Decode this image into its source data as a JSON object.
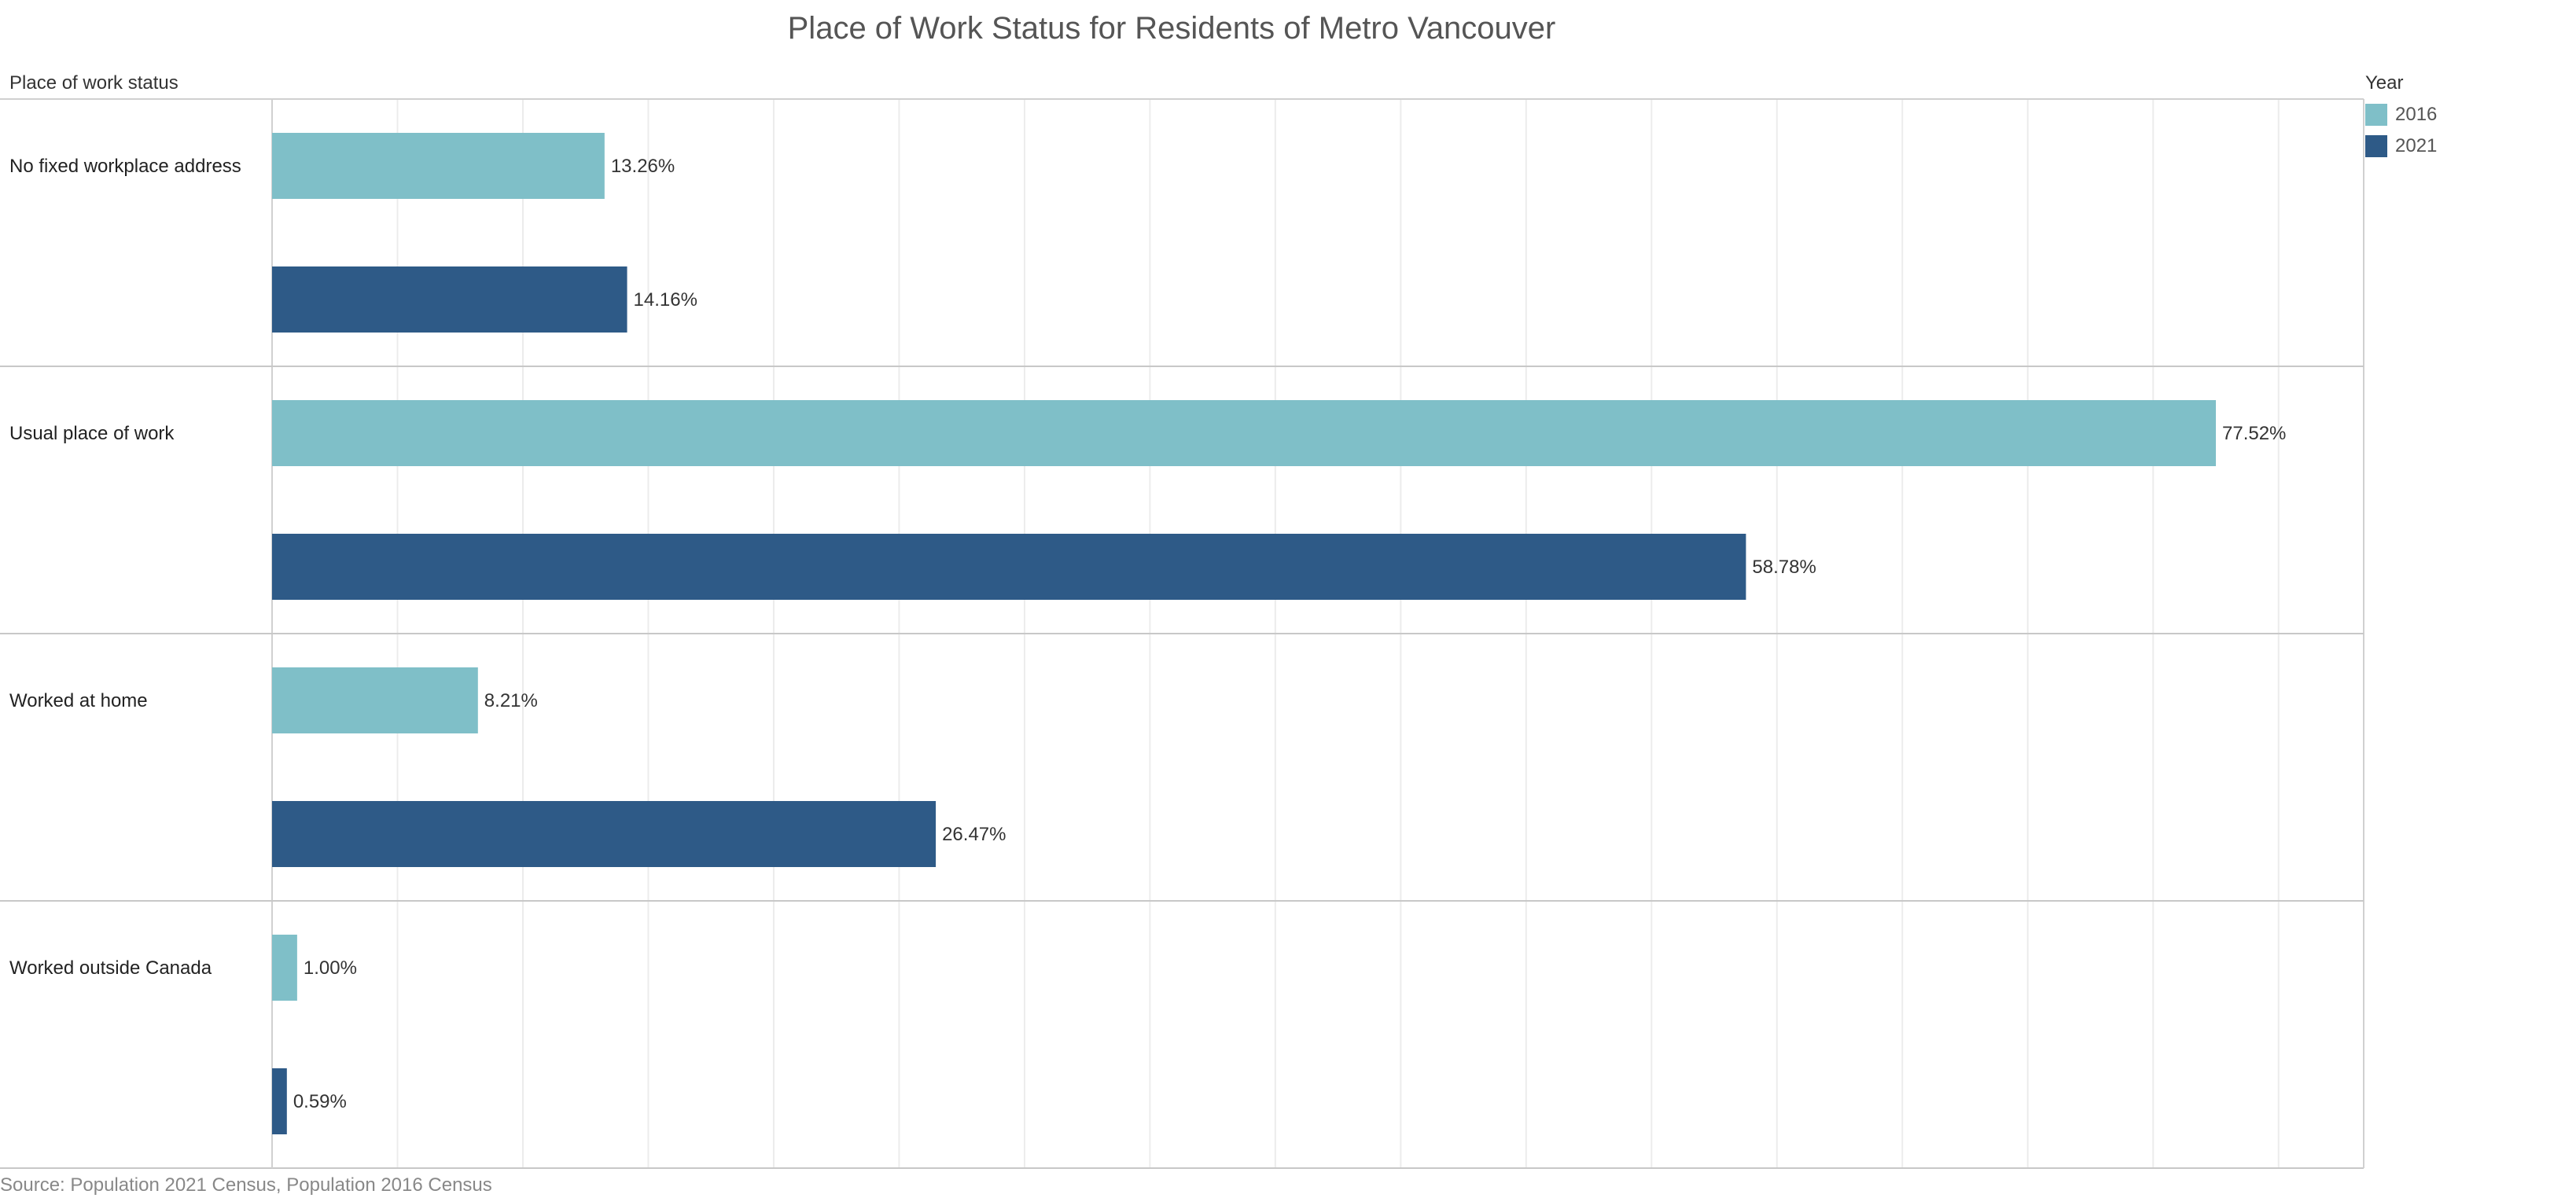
{
  "chart_data": {
    "type": "bar",
    "orientation": "horizontal",
    "title": "Place of Work Status for Residents of Metro Vancouver",
    "row_header": "Place of work status",
    "categories": [
      "No fixed workplace address",
      "Usual place of work",
      "Worked at home",
      "Worked outside Canada"
    ],
    "series": [
      {
        "name": "2016",
        "color": "#7fbfc8",
        "values": [
          13.26,
          77.52,
          8.21,
          1.0
        ],
        "labels": [
          "13.26%",
          "77.52%",
          "8.21%",
          "1.00%"
        ]
      },
      {
        "name": "2021",
        "color": "#2e5a87",
        "values": [
          14.16,
          58.78,
          26.47,
          0.59
        ],
        "labels": [
          "14.16%",
          "58.78%",
          "26.47%",
          "0.59%"
        ]
      }
    ],
    "legend_title": "Year",
    "legend_position": "top-right",
    "xlim": [
      0,
      83.5
    ],
    "grid": true,
    "source": "Source: Population 2021 Census, Population 2016 Census"
  }
}
